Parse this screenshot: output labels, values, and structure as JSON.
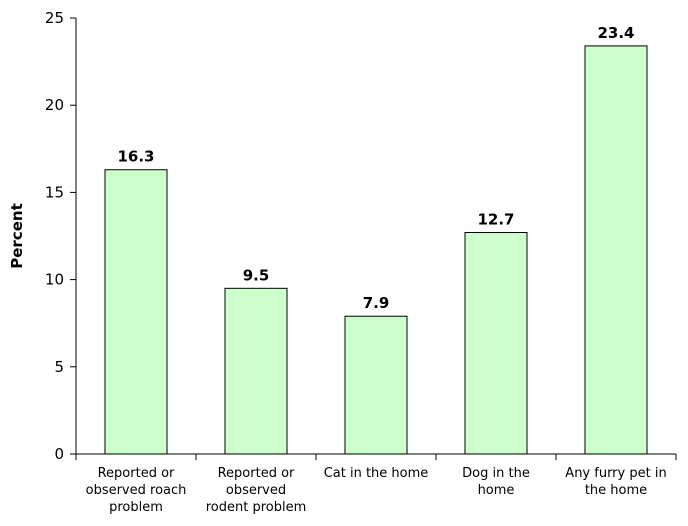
{
  "colors": {
    "bar_fill": "#ccffcc",
    "bar_stroke": "#000000",
    "axis": "#000000"
  },
  "chart_data": {
    "type": "bar",
    "title": "",
    "xlabel": "",
    "ylabel": "Percent",
    "ylim": [
      0,
      25
    ],
    "y_ticks": [
      0,
      5,
      10,
      15,
      20,
      25
    ],
    "y_tick_labels": [
      "0",
      "5",
      "10",
      "15",
      "20",
      "25"
    ],
    "grid": false,
    "legend": "none",
    "categories": [
      [
        "Reported or",
        "observed roach",
        "problem"
      ],
      [
        "Reported or",
        "observed",
        "rodent problem"
      ],
      [
        "Cat in the home"
      ],
      [
        "Dog in the",
        "home"
      ],
      [
        "Any furry pet in",
        "the home"
      ]
    ],
    "values": [
      16.3,
      9.5,
      7.9,
      12.7,
      23.4
    ],
    "data_labels": [
      "16.3",
      "9.5",
      "7.9",
      "12.7",
      "23.4"
    ]
  }
}
